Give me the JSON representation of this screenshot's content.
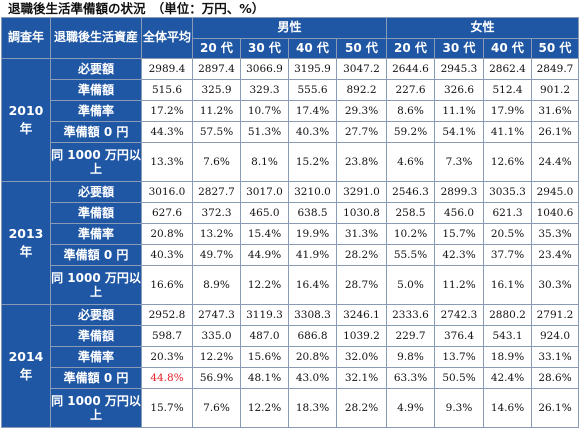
{
  "title": "退職後生活準備額の状況　（単位：万円、%）",
  "headers": {
    "year": "調査年",
    "category": "退職後生活資産",
    "overall": "全体平均",
    "male": "男性",
    "female": "女性",
    "ages": [
      "20 代",
      "30 代",
      "40 代",
      "50 代"
    ]
  },
  "groups": [
    {
      "year": "2010 年",
      "rows": [
        {
          "label": "必要額",
          "values": [
            "2989.4",
            "2897.4",
            "3066.9",
            "3195.9",
            "3047.2",
            "2644.6",
            "2945.3",
            "2862.4",
            "2849.7"
          ]
        },
        {
          "label": "準備額",
          "values": [
            "515.6",
            "325.9",
            "329.3",
            "555.6",
            "892.2",
            "227.6",
            "326.6",
            "512.4",
            "901.2"
          ]
        },
        {
          "label": "準備率",
          "values": [
            "17.2%",
            "11.2%",
            "10.7%",
            "17.4%",
            "29.3%",
            "8.6%",
            "11.1%",
            "17.9%",
            "31.6%"
          ]
        },
        {
          "label": "準備額 0 円",
          "values": [
            "44.3%",
            "57.5%",
            "51.3%",
            "40.3%",
            "27.7%",
            "59.2%",
            "54.1%",
            "41.1%",
            "26.1%"
          ]
        },
        {
          "label": "同 1000 万円以上",
          "values": [
            "13.3%",
            "7.6%",
            "8.1%",
            "15.2%",
            "23.8%",
            "4.6%",
            "7.3%",
            "12.6%",
            "24.4%"
          ]
        }
      ]
    },
    {
      "year": "2013 年",
      "rows": [
        {
          "label": "必要額",
          "values": [
            "3016.0",
            "2827.7",
            "3017.0",
            "3210.0",
            "3291.0",
            "2546.3",
            "2899.3",
            "3035.3",
            "2945.0"
          ]
        },
        {
          "label": "準備額",
          "values": [
            "627.6",
            "372.3",
            "465.0",
            "638.5",
            "1030.8",
            "258.5",
            "456.0",
            "621.3",
            "1040.6"
          ]
        },
        {
          "label": "準備率",
          "values": [
            "20.8%",
            "13.2%",
            "15.4%",
            "19.9%",
            "31.3%",
            "10.2%",
            "15.7%",
            "20.5%",
            "35.3%"
          ]
        },
        {
          "label": "準備額 0 円",
          "values": [
            "40.3%",
            "49.7%",
            "44.9%",
            "41.9%",
            "28.2%",
            "55.5%",
            "42.3%",
            "37.7%",
            "23.4%"
          ]
        },
        {
          "label": "同 1000 万円以上",
          "values": [
            "16.6%",
            "8.9%",
            "12.2%",
            "16.4%",
            "28.7%",
            "5.0%",
            "11.2%",
            "16.1%",
            "30.3%"
          ]
        }
      ]
    },
    {
      "year": "2014 年",
      "rows": [
        {
          "label": "必要額",
          "values": [
            "2952.8",
            "2747.3",
            "3119.3",
            "3308.3",
            "3246.1",
            "2333.6",
            "2742.3",
            "2880.2",
            "2791.2"
          ]
        },
        {
          "label": "準備額",
          "values": [
            "598.7",
            "335.0",
            "487.0",
            "686.8",
            "1039.2",
            "229.7",
            "376.4",
            "543.1",
            "924.0"
          ]
        },
        {
          "label": "準備率",
          "values": [
            "20.3%",
            "12.2%",
            "15.6%",
            "20.8%",
            "32.0%",
            "9.8%",
            "13.7%",
            "18.9%",
            "33.1%"
          ]
        },
        {
          "label": "準備額 0 円",
          "values": [
            "44.8%",
            "56.9%",
            "48.1%",
            "43.0%",
            "32.1%",
            "63.3%",
            "50.5%",
            "42.4%",
            "28.6%"
          ]
        },
        {
          "label": "同 1000 万円以上",
          "values": [
            "15.7%",
            "7.6%",
            "12.2%",
            "18.3%",
            "28.2%",
            "4.9%",
            "9.3%",
            "14.6%",
            "26.1%"
          ]
        }
      ]
    }
  ],
  "highlight": {
    "color": "#e8202a",
    "value": "44.8%"
  },
  "colors": {
    "header_bg": "#1f57a4",
    "header_text": "#ffffff",
    "border": "#8a9bb5"
  }
}
